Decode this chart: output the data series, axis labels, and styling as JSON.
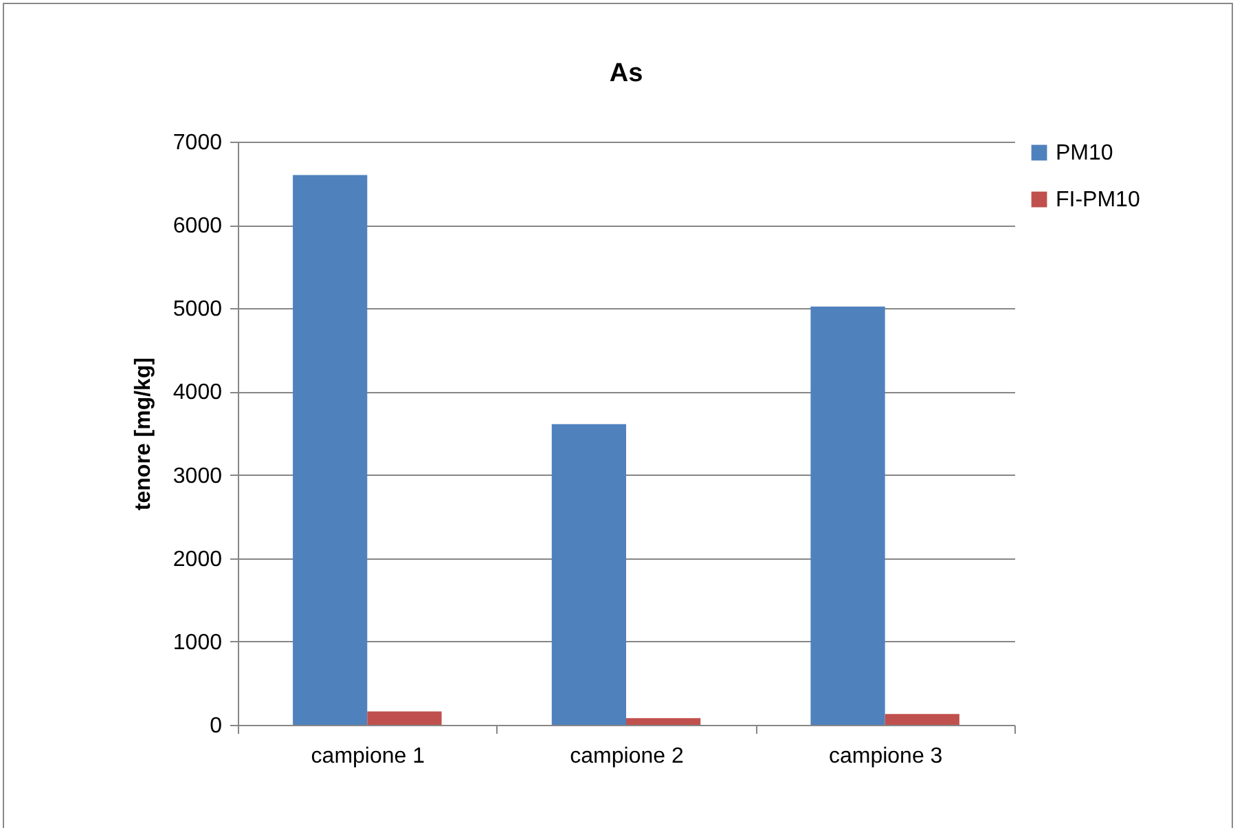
{
  "chart_data": {
    "type": "bar",
    "title": "As",
    "ylabel": "tenore [mg/kg]",
    "categories": [
      "campione 1",
      "campione 2",
      "campione 3"
    ],
    "series": [
      {
        "name": "PM10",
        "color": "#4f81bd",
        "values": [
          6600,
          3610,
          5020
        ]
      },
      {
        "name": "FI-PM10",
        "color": "#c0504d",
        "values": [
          160,
          80,
          130
        ]
      }
    ],
    "ylim": [
      0,
      7000
    ],
    "yticks": [
      0,
      1000,
      2000,
      3000,
      4000,
      5000,
      6000,
      7000
    ],
    "grid": "y",
    "legend": "right"
  }
}
